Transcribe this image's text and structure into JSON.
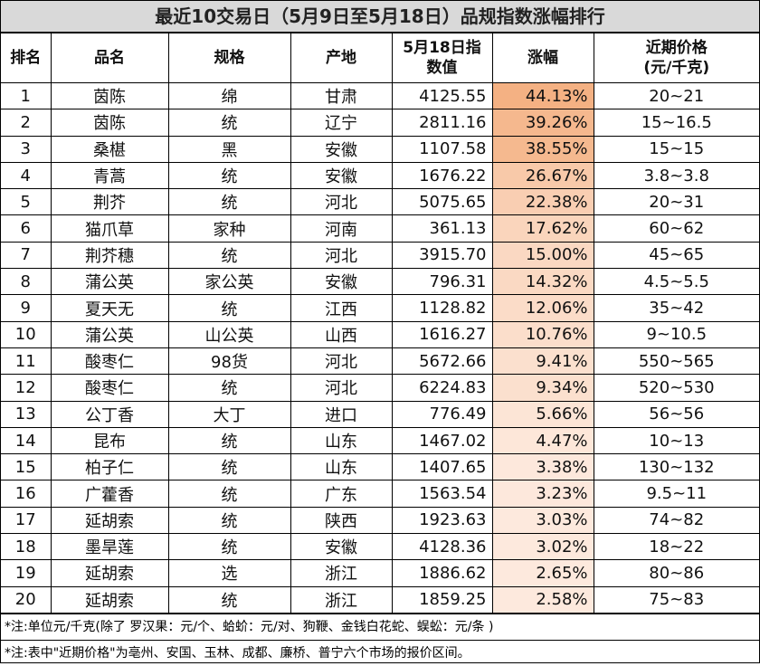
{
  "header": {
    "title": "最近10交易日（5月9日至5月18日）品规指数涨幅排行"
  },
  "table": {
    "columns": [
      "排名",
      "品名",
      "规格",
      "产地",
      "5月18日指数值",
      "涨幅",
      "近期价格(元/千克)"
    ],
    "rows": [
      [
        "1",
        "茵陈",
        "绵",
        "甘肃",
        "4125.55",
        "44.13%",
        "20~21"
      ],
      [
        "2",
        "茵陈",
        "统",
        "辽宁",
        "2811.16",
        "39.26%",
        "15~16.5"
      ],
      [
        "3",
        "桑椹",
        "黑",
        "安徽",
        "1107.58",
        "38.55%",
        "15~15"
      ],
      [
        "4",
        "青蒿",
        "统",
        "安徽",
        "1676.22",
        "26.67%",
        "3.8~3.8"
      ],
      [
        "5",
        "荆芥",
        "统",
        "河北",
        "5075.65",
        "22.38%",
        "20~31"
      ],
      [
        "6",
        "猫爪草",
        "家种",
        "河南",
        "361.13",
        "17.62%",
        "60~62"
      ],
      [
        "7",
        "荆芥穗",
        "统",
        "河北",
        "3915.70",
        "15.00%",
        "45~65"
      ],
      [
        "8",
        "蒲公英",
        "家公英",
        "安徽",
        "796.31",
        "14.32%",
        "4.5~5.5"
      ],
      [
        "9",
        "夏天无",
        "统",
        "江西",
        "1128.82",
        "12.06%",
        "35~42"
      ],
      [
        "10",
        "蒲公英",
        "山公英",
        "山西",
        "1616.27",
        "10.76%",
        "9~10.5"
      ],
      [
        "11",
        "酸枣仁",
        "98货",
        "河北",
        "5672.66",
        "9.41%",
        "550~565"
      ],
      [
        "12",
        "酸枣仁",
        "统",
        "河北",
        "6224.83",
        "9.34%",
        "520~530"
      ],
      [
        "13",
        "公丁香",
        "大丁",
        "进口",
        "776.49",
        "5.66%",
        "56~56"
      ],
      [
        "14",
        "昆布",
        "统",
        "山东",
        "1467.02",
        "4.47%",
        "10~13"
      ],
      [
        "15",
        "柏子仁",
        "统",
        "山东",
        "1407.65",
        "3.38%",
        "130~132"
      ],
      [
        "16",
        "广藿香",
        "统",
        "广东",
        "1563.54",
        "3.23%",
        "9.5~11"
      ],
      [
        "17",
        "延胡索",
        "统",
        "陕西",
        "1923.63",
        "3.03%",
        "74~82"
      ],
      [
        "18",
        "墨旱莲",
        "统",
        "安徽",
        "4128.36",
        "3.02%",
        "18~22"
      ],
      [
        "19",
        "延胡索",
        "选",
        "浙江",
        "1886.62",
        "2.65%",
        "80~86"
      ],
      [
        "20",
        "延胡索",
        "统",
        "浙江",
        "1859.25",
        "2.58%",
        "75~83"
      ]
    ],
    "rate_colors": [
      "#f4b183",
      "#f5b88e",
      "#f5b98f",
      "#f8c9a9",
      "#f9ceb2",
      "#fad5bc",
      "#fad8c2",
      "#fad9c3",
      "#fbdcc8",
      "#fbdecb",
      "#fbe0ce",
      "#fbe0ce",
      "#fce5d6",
      "#fde7d9",
      "#fde8dc",
      "#fde8dc",
      "#fde9dd",
      "#fde9dd",
      "#fde9dd",
      "#fde9dd"
    ]
  },
  "notes": [
    "*注:单位元/千克(除了 罗汉果：元/个、蛤蚧：元/对、狗鞭、金钱白花蛇、蜈蚣：元/条 )",
    "*注:表中\"近期价格\"为亳州、安国、玉林、成都、廉桥、普宁六个市场的报价区间。"
  ]
}
